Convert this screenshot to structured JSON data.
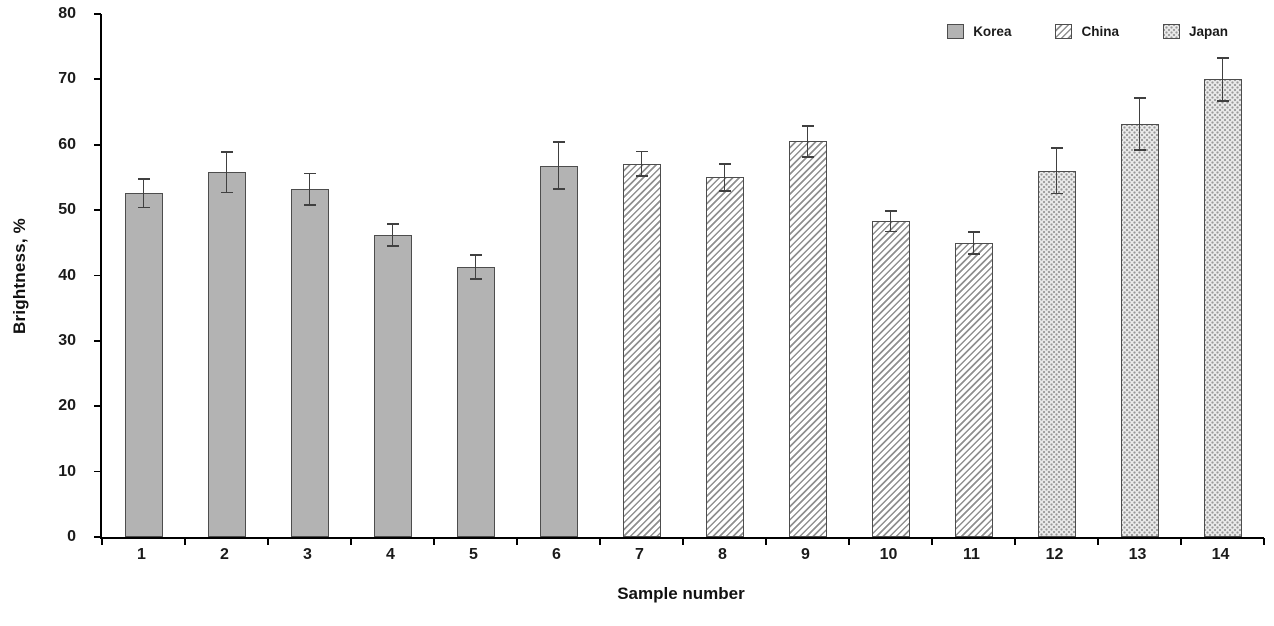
{
  "chart_data": {
    "type": "bar",
    "title": "",
    "xlabel": "Sample number",
    "ylabel": "Brightness, %",
    "ylim": [
      0,
      80
    ],
    "ytick_step": 10,
    "grid": false,
    "legend_position": "top-right",
    "categories": [
      "1",
      "2",
      "3",
      "4",
      "5",
      "6",
      "7",
      "8",
      "9",
      "10",
      "11",
      "12",
      "13",
      "14"
    ],
    "series": [
      {
        "name": "Korea",
        "pattern": "solid",
        "values": [
          52.6,
          55.8,
          53.2,
          46.2,
          41.3,
          56.8,
          null,
          null,
          null,
          null,
          null,
          null,
          null,
          null
        ],
        "errors": [
          2.3,
          3.2,
          2.5,
          1.8,
          2.0,
          3.7,
          null,
          null,
          null,
          null,
          null,
          null,
          null,
          null
        ]
      },
      {
        "name": "China",
        "pattern": "diagonal-hatch",
        "values": [
          null,
          null,
          null,
          null,
          null,
          null,
          57.1,
          55.0,
          60.5,
          48.3,
          45.0,
          null,
          null,
          null
        ],
        "errors": [
          null,
          null,
          null,
          null,
          null,
          null,
          2.0,
          2.2,
          2.5,
          1.7,
          1.8,
          null,
          null,
          null
        ]
      },
      {
        "name": "Japan",
        "pattern": "dots",
        "values": [
          null,
          null,
          null,
          null,
          null,
          null,
          null,
          null,
          null,
          null,
          null,
          56.0,
          63.2,
          70.0
        ],
        "errors": [
          null,
          null,
          null,
          null,
          null,
          null,
          null,
          null,
          null,
          null,
          null,
          3.6,
          4.1,
          3.4
        ]
      }
    ],
    "colors": {
      "bar_fill": "#b3b3b3",
      "bar_border": "#4d4d4d",
      "hatch_line": "#8f8f8f",
      "dot_color": "#9a9a9a",
      "error_bar": "#404040",
      "axis": "#000000"
    }
  }
}
